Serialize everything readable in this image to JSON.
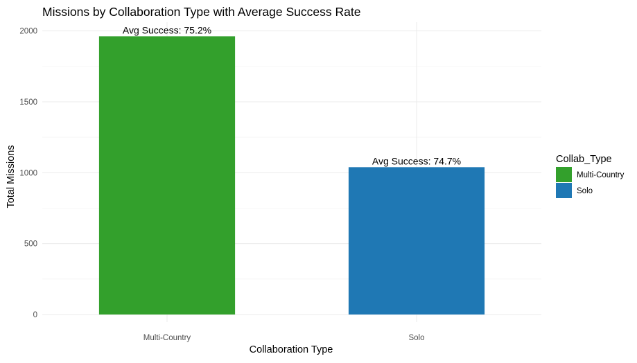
{
  "chart_data": {
    "type": "bar",
    "title": "Missions by Collaboration Type with Average Success Rate",
    "xlabel": "Collaboration Type",
    "ylabel": "Total Missions",
    "categories": [
      "Multi-Country",
      "Solo"
    ],
    "values": [
      1962,
      1039
    ],
    "data_labels": [
      "Avg Success: 75.2%",
      "Avg Success: 74.7%"
    ],
    "colors": [
      "#33a02c",
      "#1f78b4"
    ],
    "ylim": [
      0,
      2100
    ],
    "yticks": [
      0,
      500,
      1000,
      1500,
      2000
    ],
    "ytick_labels": [
      "0",
      "500",
      "1000",
      "1500",
      "2000"
    ],
    "grid": true,
    "legend": {
      "title": "Collab_Type",
      "placement": "right",
      "entries": [
        "Multi-Country",
        "Solo"
      ]
    }
  }
}
